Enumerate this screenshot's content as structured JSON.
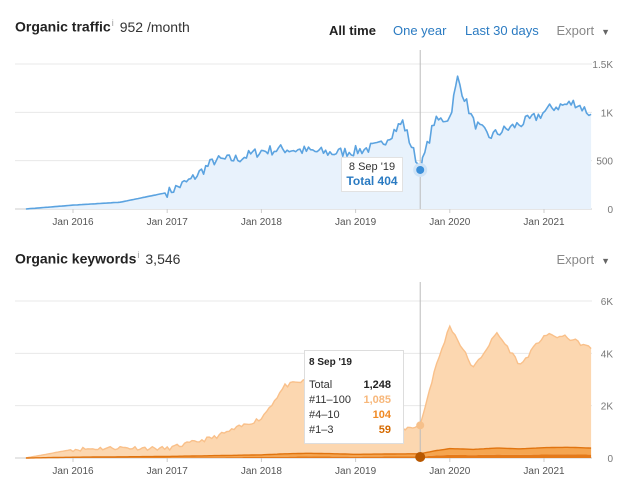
{
  "traffic": {
    "title": "Organic traffic",
    "info": "i",
    "metric": "952 /month",
    "ranges": [
      "All time",
      "One year",
      "Last 30 days"
    ],
    "export": "Export",
    "caret": "▼",
    "y_ticks": [
      "1.5K",
      "1K",
      "500",
      "0"
    ],
    "x_ticks": [
      "Jan 2016",
      "Jan 2017",
      "Jan 2018",
      "Jan 2019",
      "Jan 2020",
      "Jan 2021"
    ],
    "tooltip": {
      "date": "8 Sep '19",
      "total": "Total 404"
    }
  },
  "keywords": {
    "title": "Organic keywords",
    "info": "i",
    "metric": "3,546",
    "export": "Export",
    "caret": "▼",
    "y_ticks": [
      "6K",
      "4K",
      "2K",
      "0"
    ],
    "x_ticks": [
      "Jan 2016",
      "Jan 2017",
      "Jan 2018",
      "Jan 2019",
      "Jan 2020",
      "Jan 2021"
    ],
    "tooltip": {
      "date": "8 Sep '19",
      "rows": [
        {
          "label": "Total",
          "value": "1,248",
          "color": "#222222"
        },
        {
          "label": "#11–100",
          "value": "1,085",
          "color": "#f7b77a"
        },
        {
          "label": "#4–10",
          "value": "104",
          "color": "#f08a24"
        },
        {
          "label": "#1–3",
          "value": "59",
          "color": "#d56a00"
        }
      ]
    }
  },
  "colors": {
    "traffic_line": "#5ba3e0",
    "traffic_fill": "#e8f2fc",
    "kw_fill": "#fcd7b0",
    "kw_line": "#f9c08a",
    "kw_low": "#e57a1a"
  },
  "chart_data": [
    {
      "type": "area",
      "title": "Organic traffic",
      "ylim": [
        0,
        1500
      ],
      "x": [
        "2015-07",
        "2016-01",
        "2016-07",
        "2017-01",
        "2017-04",
        "2017-07",
        "2017-10",
        "2018-01",
        "2018-04",
        "2018-07",
        "2018-10",
        "2019-01",
        "2019-04",
        "2019-07",
        "2019-09-08",
        "2019-11",
        "2020-01",
        "2020-02",
        "2020-04",
        "2020-06",
        "2020-09",
        "2020-12",
        "2021-02",
        "2021-05",
        "2021-07"
      ],
      "values": [
        0,
        40,
        70,
        170,
        300,
        500,
        520,
        600,
        620,
        600,
        580,
        600,
        650,
        900,
        404,
        900,
        950,
        1350,
        900,
        750,
        850,
        950,
        1050,
        1100,
        980
      ],
      "grid": true,
      "series": [
        {
          "name": "Total",
          "values": [
            0,
            40,
            70,
            170,
            300,
            500,
            520,
            600,
            620,
            600,
            580,
            600,
            650,
            900,
            404,
            900,
            950,
            1350,
            900,
            750,
            850,
            950,
            1050,
            1100,
            980
          ]
        }
      ]
    },
    {
      "type": "area",
      "title": "Organic keywords",
      "ylim": [
        0,
        6000
      ],
      "x": [
        "2015-07",
        "2016-01",
        "2016-07",
        "2017-01",
        "2017-07",
        "2018-01",
        "2018-04",
        "2018-07",
        "2018-10",
        "2019-01",
        "2019-04",
        "2019-07",
        "2019-09-08",
        "2019-11",
        "2020-01",
        "2020-04",
        "2020-07",
        "2020-10",
        "2021-01",
        "2021-04",
        "2021-07"
      ],
      "grid": true,
      "series": [
        {
          "name": "#11–100",
          "values": [
            0,
            300,
            350,
            300,
            700,
            1400,
            2600,
            2800,
            2700,
            1100,
            900,
            950,
            1085,
            3000,
            4700,
            3100,
            4400,
            3200,
            4300,
            4200,
            3800
          ]
        },
        {
          "name": "#4–10",
          "values": [
            0,
            20,
            30,
            40,
            60,
            80,
            110,
            120,
            110,
            90,
            95,
            100,
            104,
            180,
            240,
            220,
            250,
            230,
            260,
            270,
            250
          ]
        },
        {
          "name": "#1–3",
          "values": [
            0,
            10,
            15,
            20,
            30,
            40,
            50,
            60,
            55,
            50,
            55,
            57,
            59,
            90,
            120,
            110,
            130,
            120,
            135,
            140,
            130
          ]
        }
      ]
    }
  ]
}
